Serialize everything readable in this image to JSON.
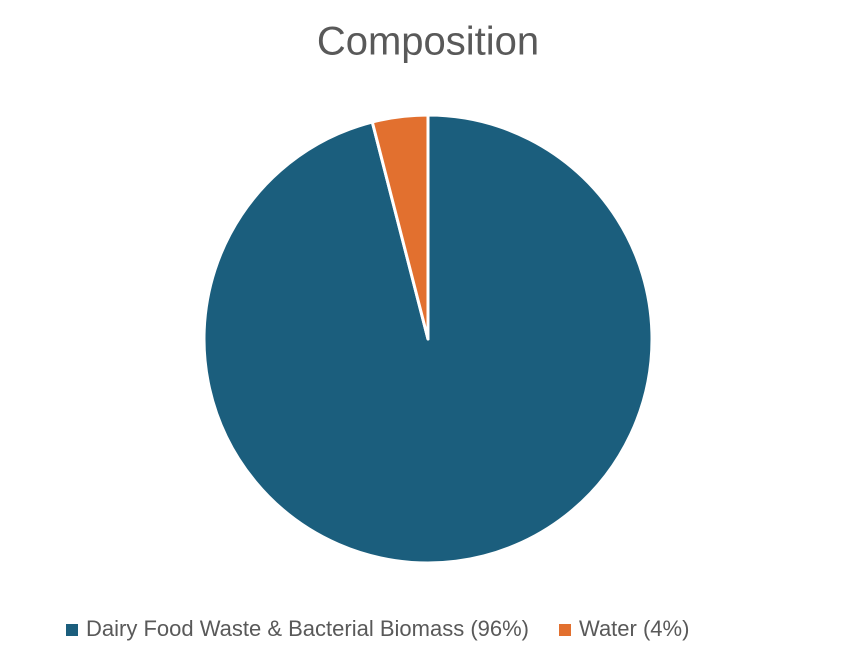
{
  "chart_data": {
    "type": "pie",
    "title": "Composition",
    "categories": [
      "Dairy Food Waste & Bacterial Biomass (96%)",
      "Water (4%)"
    ],
    "values": [
      96,
      4
    ],
    "colors": [
      "#1b5e7d",
      "#e2702f"
    ],
    "legend": "bottom"
  }
}
